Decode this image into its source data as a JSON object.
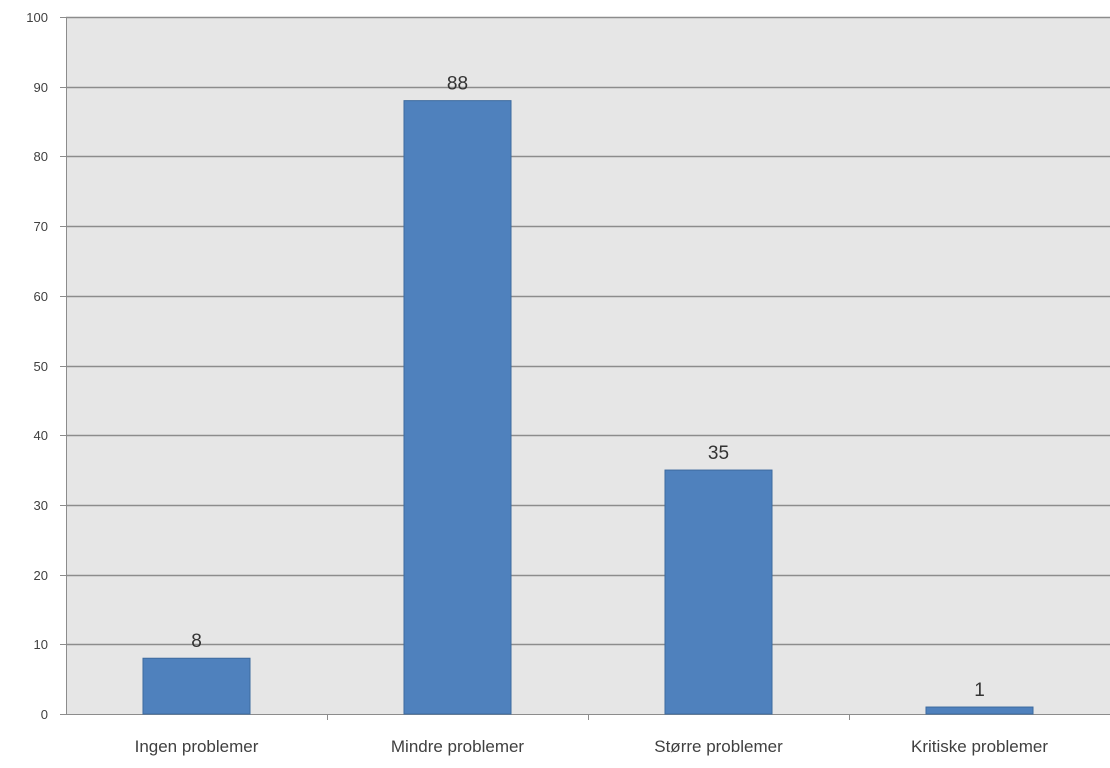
{
  "chart_data": {
    "type": "bar",
    "title": "",
    "xlabel": "",
    "ylabel": "",
    "categories": [
      "Ingen problemer",
      "Mindre problemer",
      "Større problemer",
      "Kritiske problemer"
    ],
    "values": [
      8,
      88,
      35,
      1
    ],
    "data_labels": [
      "8",
      "88",
      "35",
      "1"
    ],
    "ylim": [
      0,
      100
    ],
    "yticks": [
      0,
      10,
      20,
      30,
      40,
      50,
      60,
      70,
      80,
      90,
      100
    ],
    "ytick_labels": [
      "0",
      "10",
      "20",
      "30",
      "40",
      "50",
      "60",
      "70",
      "80",
      "90",
      "100"
    ],
    "grid": true,
    "legend": "none",
    "colors": {
      "bar": "#4f81bd",
      "bar_edge": "#3d6a9e",
      "plot_background": "#e6e6e6",
      "gridline": "#8c8c8c",
      "axis": "#8c8c8c"
    }
  }
}
